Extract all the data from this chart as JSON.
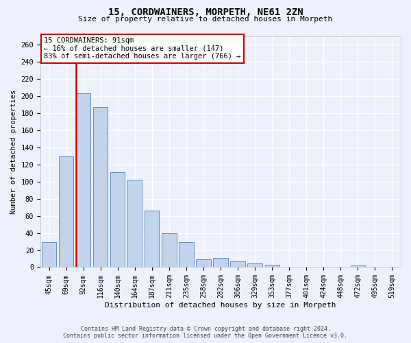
{
  "title": "15, CORDWAINERS, MORPETH, NE61 2ZN",
  "subtitle": "Size of property relative to detached houses in Morpeth",
  "xlabel": "Distribution of detached houses by size in Morpeth",
  "ylabel": "Number of detached properties",
  "footer_line1": "Contains HM Land Registry data © Crown copyright and database right 2024.",
  "footer_line2": "Contains public sector information licensed under the Open Government Licence v3.0.",
  "categories": [
    "45sqm",
    "69sqm",
    "92sqm",
    "116sqm",
    "140sqm",
    "164sqm",
    "187sqm",
    "211sqm",
    "235sqm",
    "258sqm",
    "282sqm",
    "306sqm",
    "329sqm",
    "353sqm",
    "377sqm",
    "401sqm",
    "424sqm",
    "448sqm",
    "472sqm",
    "495sqm",
    "519sqm"
  ],
  "values": [
    29,
    129,
    203,
    187,
    111,
    102,
    66,
    40,
    29,
    9,
    11,
    7,
    4,
    3,
    0,
    0,
    0,
    0,
    2,
    0,
    0
  ],
  "bar_color": "#c2d4eb",
  "bar_edge_color": "#5b8ec4",
  "subject_bar_index": 2,
  "subject_line_color": "#cc0000",
  "annotation_line1": "15 CORDWAINERS: 91sqm",
  "annotation_line2": "← 16% of detached houses are smaller (147)",
  "annotation_line3": "83% of semi-detached houses are larger (766) →",
  "annotation_box_facecolor": "#ffffff",
  "annotation_box_edgecolor": "#cc0000",
  "background_color": "#edf1fb",
  "grid_color": "#ffffff",
  "ylim_max": 270,
  "yticks": [
    0,
    20,
    40,
    60,
    80,
    100,
    120,
    140,
    160,
    180,
    200,
    220,
    240,
    260
  ]
}
